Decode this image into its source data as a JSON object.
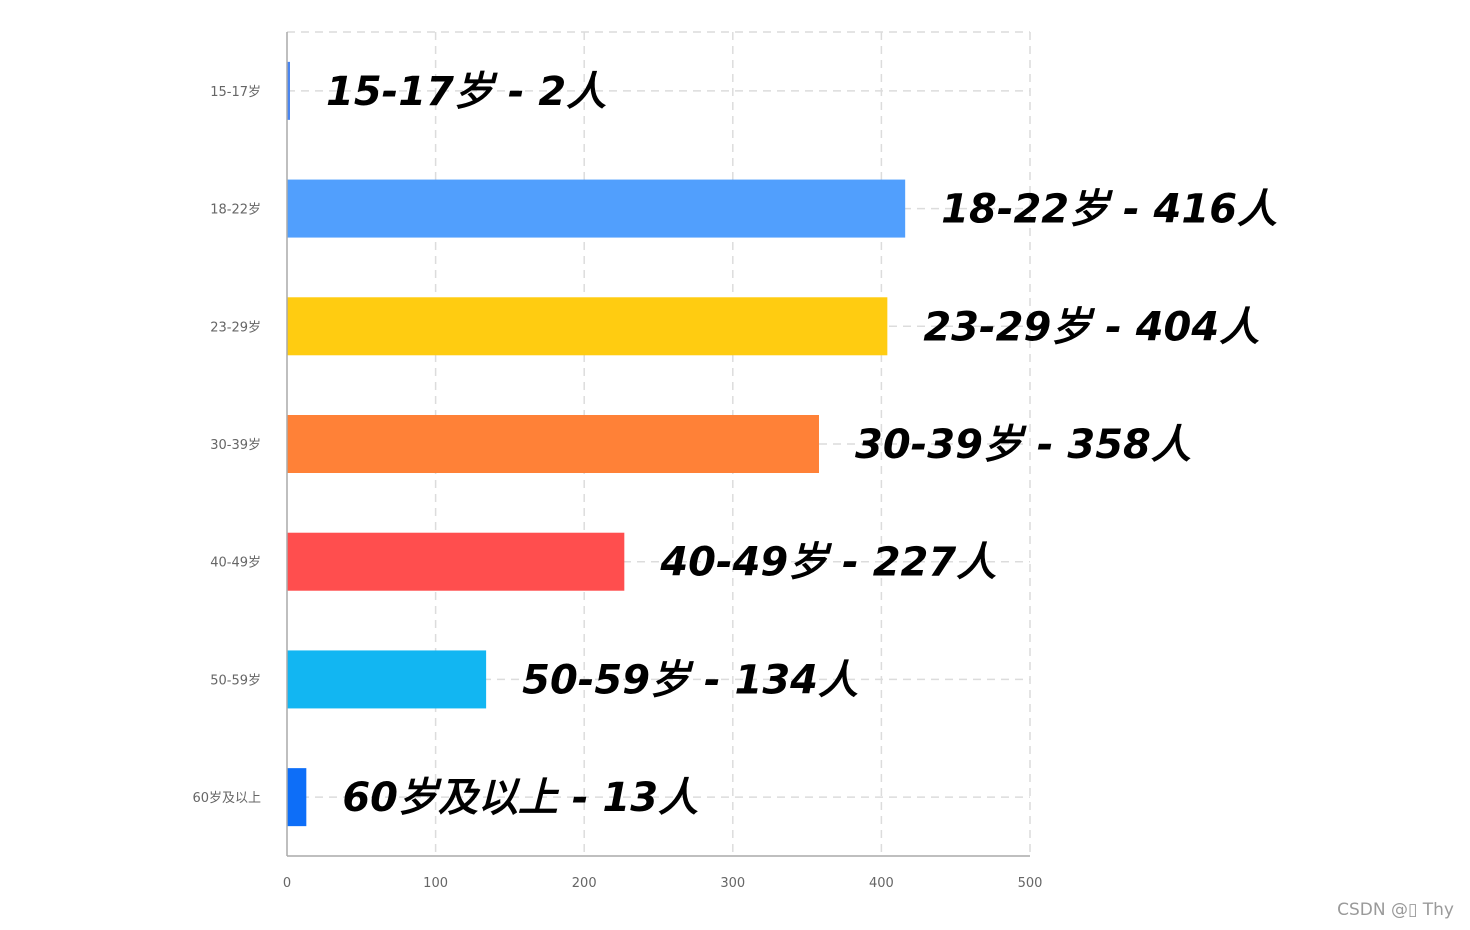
{
  "chart_data": {
    "type": "bar",
    "orientation": "horizontal",
    "categories": [
      "15-17岁",
      "18-22岁",
      "23-29岁",
      "30-39岁",
      "40-49岁",
      "50-59岁",
      "60岁及以上"
    ],
    "values": [
      2,
      416,
      404,
      358,
      227,
      134,
      13
    ],
    "data_labels": [
      "15-17岁 - 2人",
      "18-22岁 - 416人",
      "23-29岁 - 404人",
      "30-39岁 - 358人",
      "40-49岁 - 227人",
      "50-59岁 - 134人",
      "60岁及以上 - 13人"
    ],
    "colors": [
      "#4a86f0",
      "#519ffd",
      "#ffcc11",
      "#ff8137",
      "#ff4e4e",
      "#12b6f2",
      "#0d6ef8"
    ],
    "xlim": [
      0,
      500
    ],
    "xticks": [
      "0",
      "100",
      "200",
      "300",
      "400",
      "500"
    ],
    "grid": true,
    "gridline_color": "#dcdcdc"
  },
  "watermark": "CSDN @▯ Thy"
}
